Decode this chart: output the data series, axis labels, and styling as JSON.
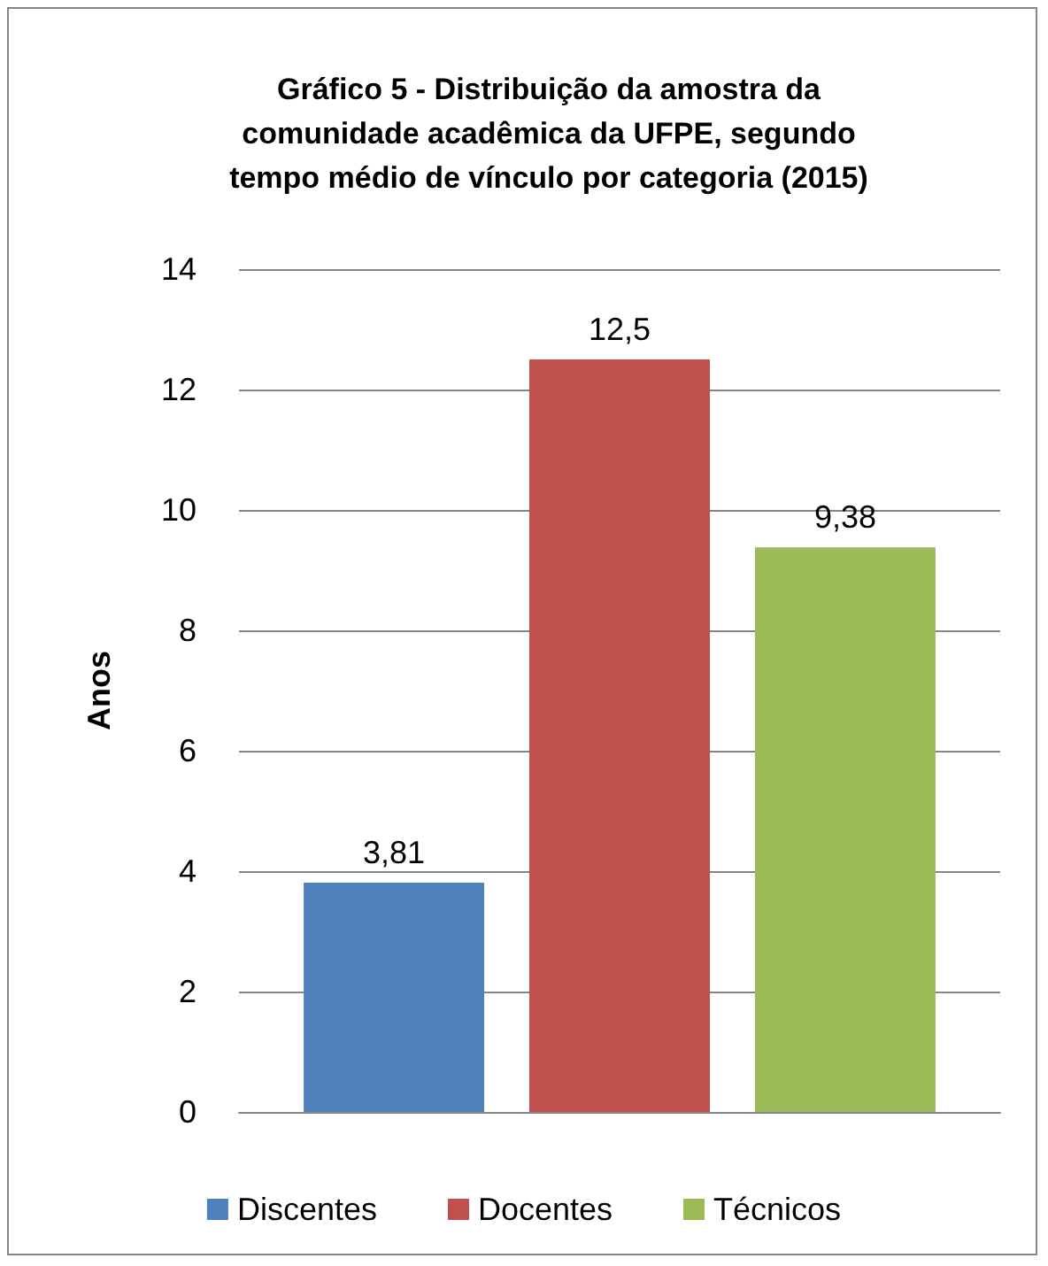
{
  "chart_data": {
    "type": "bar",
    "title": "Gráfico 5 - Distribuição da amostra da\ncomunidade acadêmica da UFPE, segundo\ntempo médio de vínculo por categoria (2015)",
    "ylabel": "Anos",
    "categories": [
      null
    ],
    "series": [
      {
        "name": "Discentes",
        "color": "#4f81bd",
        "values": [
          3.81
        ],
        "value_labels": [
          "3,81"
        ]
      },
      {
        "name": "Docentes",
        "color": "#c0504d",
        "values": [
          12.5
        ],
        "value_labels": [
          "12,5"
        ]
      },
      {
        "name": "Técnicos",
        "color": "#9bbb59",
        "values": [
          9.38
        ],
        "value_labels": [
          "9,38"
        ]
      }
    ],
    "ylim": [
      0,
      14
    ],
    "yticks": [
      0,
      2,
      4,
      6,
      8,
      10,
      12,
      14
    ],
    "grid": "y",
    "legend": "bottom"
  }
}
